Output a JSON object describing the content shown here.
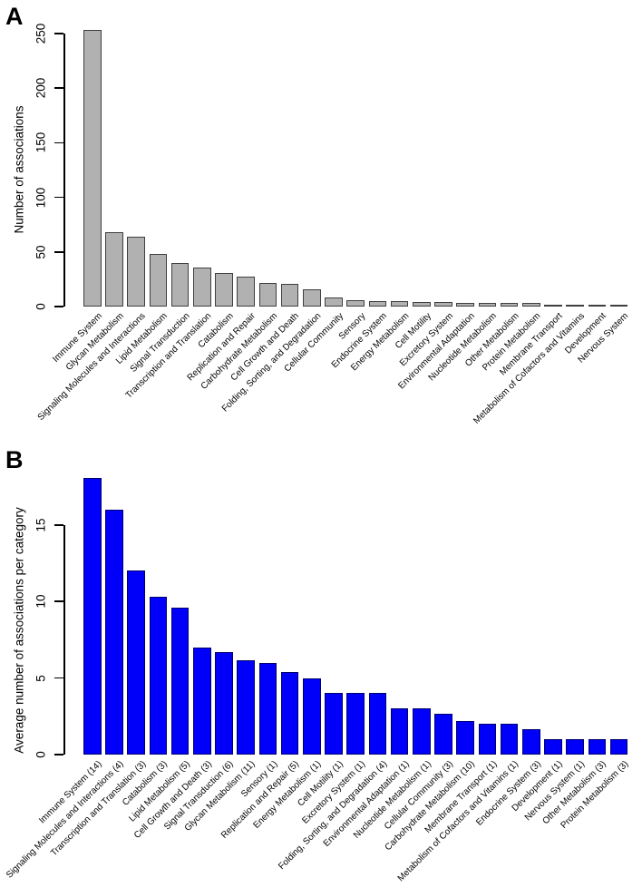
{
  "chart_data": [
    {
      "type": "bar",
      "panel_label": "A",
      "title": "",
      "xlabel": "",
      "ylabel": "Number of associations",
      "yticks": [
        0,
        50,
        100,
        150,
        200,
        250
      ],
      "ylim": [
        0,
        260
      ],
      "grid": false,
      "legend": "none",
      "bar_color": "#b1b1b1",
      "bar_border": "#3f3f3f",
      "categories": [
        "Immune System",
        "Glycan Metabolism",
        "Signaling Molecules and Interactions",
        "Lipid Metabolism",
        "Signal Transduction",
        "Transcription and Translation",
        "Catabolism",
        "Replication and Repair",
        "Carbohydrate Metabolism",
        "Cell Growth and Death",
        "Folding, Sorting, and Degradation",
        "Cellular Community",
        "Sensory",
        "Endocrine System",
        "Energy Metabolism",
        "Cell Motility",
        "Excretory System",
        "Environmental Adaptation",
        "Nucleotide Metabolism",
        "Other Metabolism",
        "Protein Metabolism",
        "Membrane Transport",
        "Metabolism of Cofactors and Vitamins",
        "Development",
        "Nervous System"
      ],
      "values": [
        253,
        68,
        64,
        48,
        40,
        36,
        31,
        27,
        22,
        21,
        16,
        8,
        6,
        5,
        5,
        4,
        4,
        3,
        3,
        3,
        3,
        2,
        2,
        1,
        1
      ]
    },
    {
      "type": "bar",
      "panel_label": "B",
      "title": "",
      "xlabel": "",
      "ylabel": "Average number of associations per category",
      "yticks": [
        0,
        5,
        10,
        15
      ],
      "ylim": [
        0,
        18.1
      ],
      "grid": false,
      "legend": "none",
      "bar_color": "#0000fa",
      "bar_border": "#000070",
      "categories": [
        "Immune System (14)",
        "Signaling Molecules and Interactions (4)",
        "Transcription and Translation (3)",
        "Catabolism (3)",
        "Lipid Metabolism (5)",
        "Cell Growth and Death (3)",
        "Signal Transduction (6)",
        "Glycan Metabolism (11)",
        "Sensory (1)",
        "Replication and Repair (5)",
        "Energy Metabolism (1)",
        "Cell Motility (1)",
        "Excretory System (1)",
        "Folding, Sorting, and Degradation (4)",
        "Environmental Adaptation (1)",
        "Nucleotide Metabolism (1)",
        "Cellular Community (3)",
        "Carbohydrate Metabolism (10)",
        "Membrane Transport (1)",
        "Metabolism of Cofactors and Vitamins (1)",
        "Endocrine System (3)",
        "Development (1)",
        "Nervous System (1)",
        "Other Metabolism (3)",
        "Protein Metabolism (3)"
      ],
      "values": [
        18.07,
        16,
        12,
        10.33,
        9.6,
        7,
        6.67,
        6.18,
        6,
        5.4,
        5,
        4,
        4,
        4,
        3,
        3,
        2.67,
        2.2,
        2,
        2,
        1.67,
        1,
        1,
        1,
        1
      ]
    }
  ]
}
